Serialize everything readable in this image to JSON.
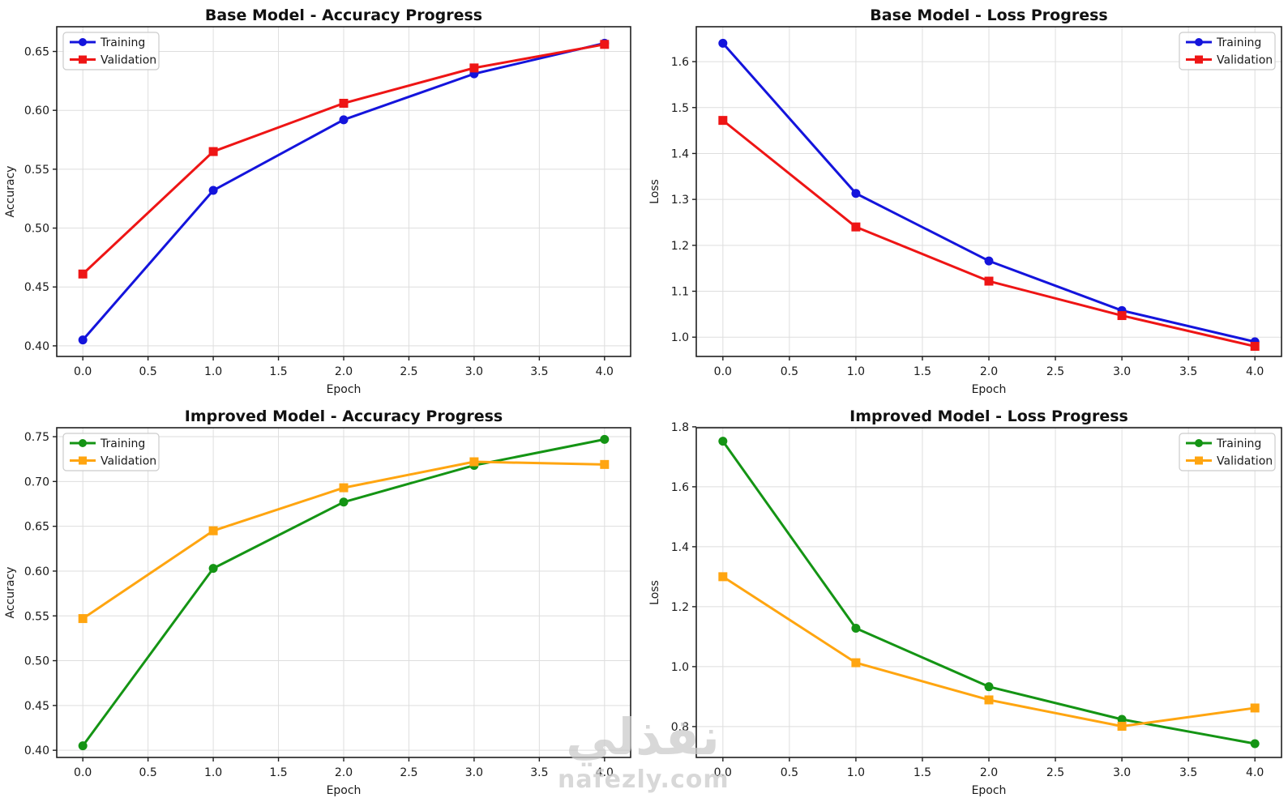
{
  "page": {
    "background": "#ffffff",
    "watermark": {
      "logo_text": "نفذلي",
      "site_text": "nafezly.com",
      "color": "#cbcbcb"
    }
  },
  "chart_data": [
    {
      "id": "base-accuracy",
      "type": "line",
      "title": "Base Model - Accuracy Progress",
      "xlabel": "Epoch",
      "ylabel": "Accuracy",
      "x": [
        0,
        1,
        2,
        3,
        4
      ],
      "series": [
        {
          "name": "Training",
          "marker": "circle",
          "color": "#1414dc",
          "values": [
            0.405,
            0.532,
            0.592,
            0.631,
            0.657
          ]
        },
        {
          "name": "Validation",
          "marker": "square",
          "color": "#ee1515",
          "values": [
            0.461,
            0.565,
            0.606,
            0.636,
            0.656
          ]
        }
      ],
      "xlim": [
        -0.2,
        4.2
      ],
      "ylim": [
        0.391,
        0.671
      ],
      "xticks": [
        0.0,
        0.5,
        1.0,
        1.5,
        2.0,
        2.5,
        3.0,
        3.5,
        4.0
      ],
      "yticks": [
        0.4,
        0.45,
        0.5,
        0.55,
        0.6,
        0.65
      ],
      "xtick_decimals": 1,
      "ytick_decimals": 2,
      "legend_position": "upper-left",
      "grid": true
    },
    {
      "id": "base-loss",
      "type": "line",
      "title": "Base Model - Loss Progress",
      "xlabel": "Epoch",
      "ylabel": "Loss",
      "x": [
        0,
        1,
        2,
        3,
        4
      ],
      "series": [
        {
          "name": "Training",
          "marker": "circle",
          "color": "#1414dc",
          "values": [
            1.64,
            1.313,
            1.166,
            1.058,
            0.99
          ]
        },
        {
          "name": "Validation",
          "marker": "square",
          "color": "#ee1515",
          "values": [
            1.472,
            1.24,
            1.122,
            1.047,
            0.98
          ]
        }
      ],
      "xlim": [
        -0.2,
        4.2
      ],
      "ylim": [
        0.958,
        1.676
      ],
      "xticks": [
        0.0,
        0.5,
        1.0,
        1.5,
        2.0,
        2.5,
        3.0,
        3.5,
        4.0
      ],
      "yticks": [
        1.0,
        1.1,
        1.2,
        1.3,
        1.4,
        1.5,
        1.6
      ],
      "xtick_decimals": 1,
      "ytick_decimals": 1,
      "legend_position": "upper-right",
      "grid": true
    },
    {
      "id": "improved-accuracy",
      "type": "line",
      "title": "Improved Model - Accuracy Progress",
      "xlabel": "Epoch",
      "ylabel": "Accuracy",
      "x": [
        0,
        1,
        2,
        3,
        4
      ],
      "series": [
        {
          "name": "Training",
          "marker": "circle",
          "color": "#149414",
          "values": [
            0.405,
            0.603,
            0.677,
            0.718,
            0.747
          ]
        },
        {
          "name": "Validation",
          "marker": "square",
          "color": "#ffa510",
          "values": [
            0.547,
            0.645,
            0.693,
            0.722,
            0.719
          ]
        }
      ],
      "xlim": [
        -0.2,
        4.2
      ],
      "ylim": [
        0.392,
        0.76
      ],
      "xticks": [
        0.0,
        0.5,
        1.0,
        1.5,
        2.0,
        2.5,
        3.0,
        3.5,
        4.0
      ],
      "yticks": [
        0.4,
        0.45,
        0.5,
        0.55,
        0.6,
        0.65,
        0.7,
        0.75
      ],
      "xtick_decimals": 1,
      "ytick_decimals": 2,
      "legend_position": "upper-left",
      "grid": true
    },
    {
      "id": "improved-loss",
      "type": "line",
      "title": "Improved Model - Loss Progress",
      "xlabel": "Epoch",
      "ylabel": "Loss",
      "x": [
        0,
        1,
        2,
        3,
        4
      ],
      "series": [
        {
          "name": "Training",
          "marker": "circle",
          "color": "#149414",
          "values": [
            1.752,
            1.128,
            0.933,
            0.824,
            0.743
          ]
        },
        {
          "name": "Validation",
          "marker": "square",
          "color": "#ffa510",
          "values": [
            1.3,
            1.013,
            0.889,
            0.801,
            0.862
          ]
        }
      ],
      "xlim": [
        -0.2,
        4.2
      ],
      "ylim": [
        0.697,
        1.797
      ],
      "xticks": [
        0.0,
        0.5,
        1.0,
        1.5,
        2.0,
        2.5,
        3.0,
        3.5,
        4.0
      ],
      "yticks": [
        0.8,
        1.0,
        1.2,
        1.4,
        1.6,
        1.8
      ],
      "xtick_decimals": 1,
      "ytick_decimals": 1,
      "legend_position": "upper-right",
      "grid": true
    }
  ]
}
